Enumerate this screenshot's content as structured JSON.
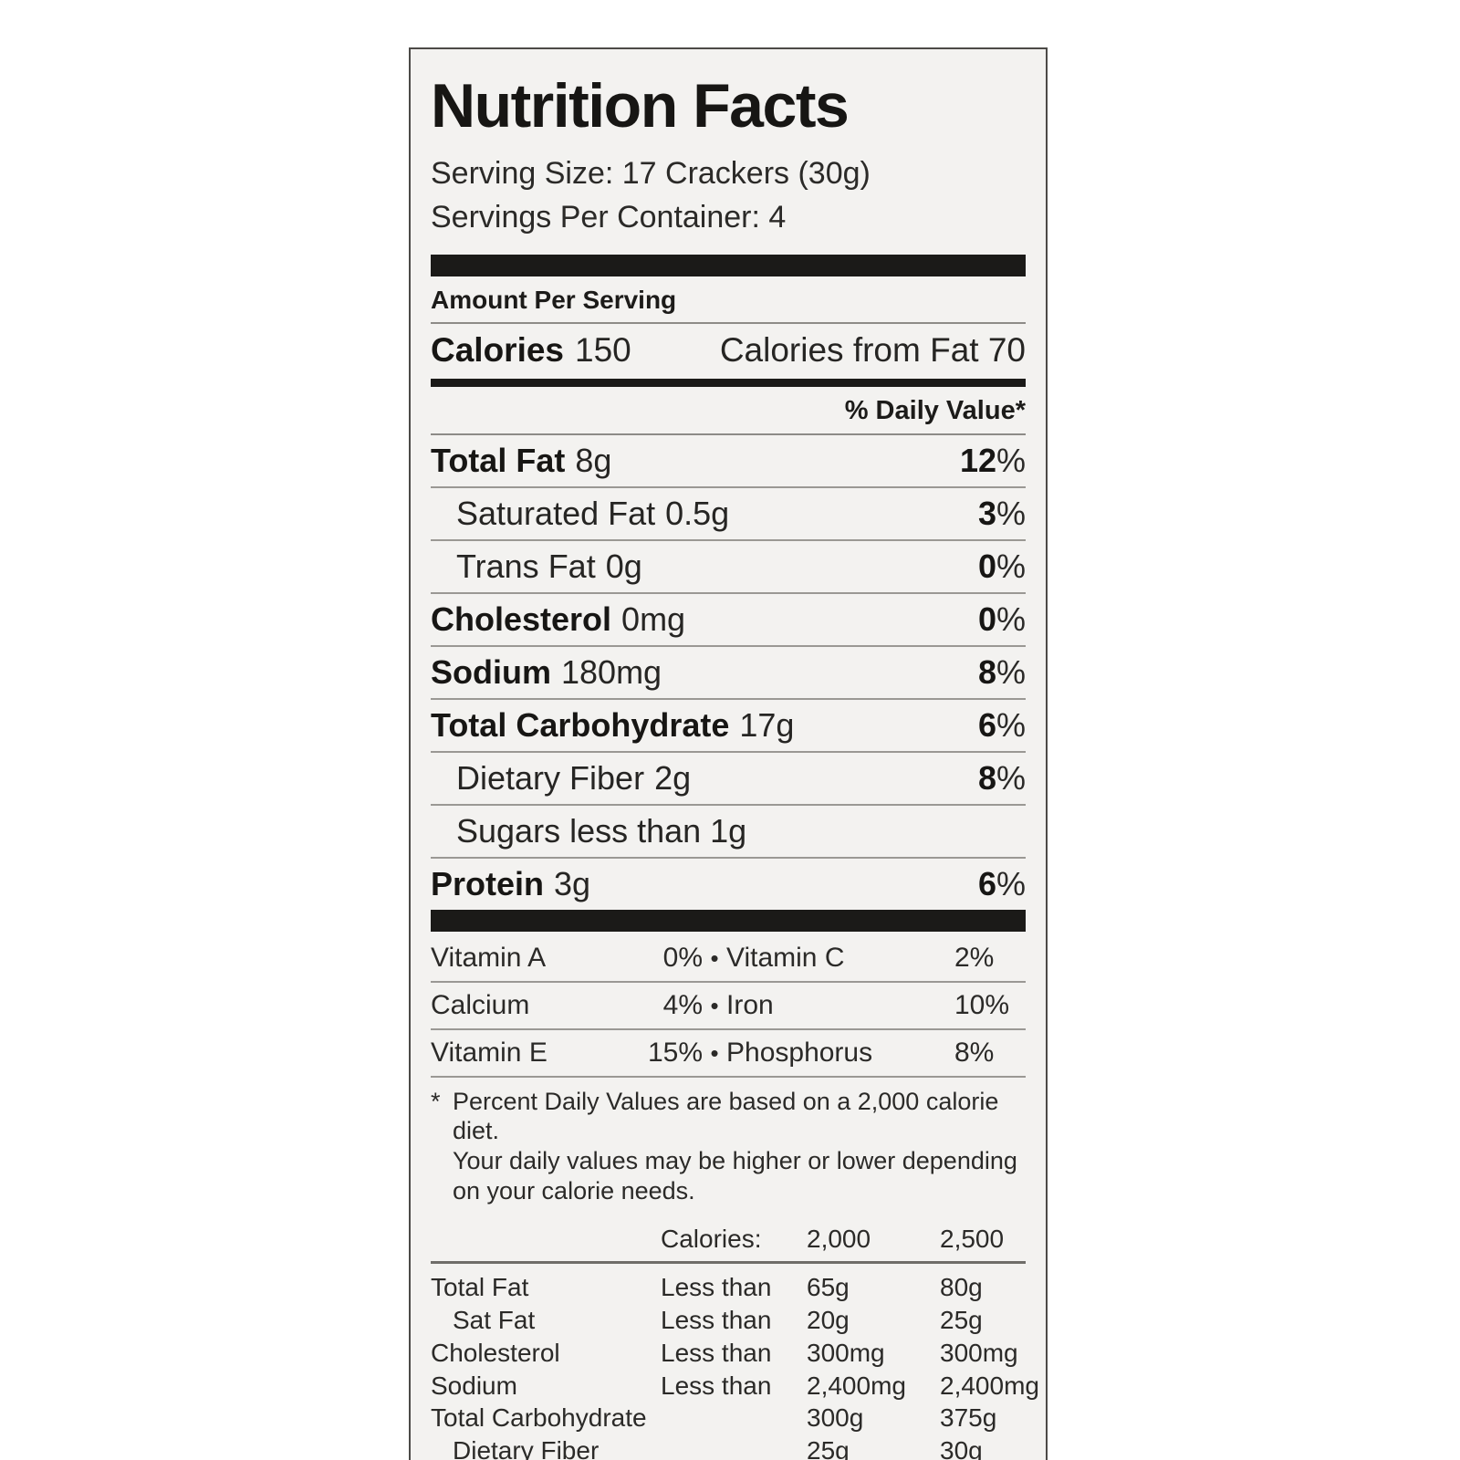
{
  "colors": {
    "page_background": "#ffffff",
    "label_background": "#f3f2f0",
    "text": "#2b2a28",
    "bold_text": "#171614",
    "bar": "#1b1a18",
    "rule": "#9a9894",
    "border": "#4c4a47"
  },
  "label": {
    "title": "Nutrition Facts",
    "serving_size": "Serving Size: 17 Crackers (30g)",
    "servings_per_container": "Servings Per Container: 4",
    "amount_per_serving": "Amount Per Serving",
    "calories": {
      "label": "Calories",
      "value": "150",
      "from_fat": "Calories from Fat 70"
    },
    "daily_value_header": "% Daily Value*",
    "nutrients": [
      {
        "name": "Total Fat",
        "amount": "8g",
        "dv_num": "12",
        "dv_sign": "%"
      },
      {
        "name": "Saturated Fat",
        "amount": "0.5g",
        "dv_num": "3",
        "dv_sign": "%"
      },
      {
        "name": "Trans Fat",
        "amount": "0g",
        "dv_num": "0",
        "dv_sign": "%"
      },
      {
        "name": "Cholesterol",
        "amount": "0mg",
        "dv_num": "0",
        "dv_sign": "%"
      },
      {
        "name": "Sodium",
        "amount": "180mg",
        "dv_num": "8",
        "dv_sign": "%"
      },
      {
        "name": "Total Carbohydrate",
        "amount": "17g",
        "dv_num": "6",
        "dv_sign": "%"
      },
      {
        "name": "Dietary Fiber",
        "amount": "2g",
        "dv_num": "8",
        "dv_sign": "%"
      },
      {
        "name": "Sugars less than 1g",
        "amount": "",
        "dv_num": "",
        "dv_sign": ""
      },
      {
        "name": "Protein",
        "amount": "3g",
        "dv_num": "6",
        "dv_sign": "%"
      }
    ],
    "vitamins_bullet": "•",
    "vitamins": [
      {
        "left_name": "Vitamin A",
        "left_value": "0%",
        "right_name": "Vitamin C",
        "right_value": "2%"
      },
      {
        "left_name": "Calcium",
        "left_value": "4%",
        "right_name": "Iron",
        "right_value": "10%"
      },
      {
        "left_name": "Vitamin E",
        "left_value": "15%",
        "right_name": "Phosphorus",
        "right_value": "8%"
      }
    ],
    "footnote_mark": "*",
    "footnote_lines": [
      "Percent Daily Values are based on a 2,000 calorie diet.",
      "Your daily values may be higher  or lower depending",
      "on your calorie needs."
    ],
    "reference_table": {
      "calories_label": "Calories:",
      "col_2000": "2,000",
      "col_2500": "2,500",
      "rows": [
        {
          "name": "Total Fat",
          "qualifier": "Less than",
          "v2000": "65g",
          "v2500": "80g"
        },
        {
          "name": "Sat Fat",
          "qualifier": "Less than",
          "v2000": "20g",
          "v2500": "25g"
        },
        {
          "name": "Cholesterol",
          "qualifier": "Less than",
          "v2000": "300mg",
          "v2500": "300mg"
        },
        {
          "name": "Sodium",
          "qualifier": "Less than",
          "v2000": "2,400mg",
          "v2500": "2,400mg"
        },
        {
          "name": "Total Carbohydrate",
          "qualifier": "",
          "v2000": "300g",
          "v2500": "375g"
        },
        {
          "name": "Dietary Fiber",
          "qualifier": "",
          "v2000": "25g",
          "v2500": "30g"
        }
      ]
    }
  }
}
